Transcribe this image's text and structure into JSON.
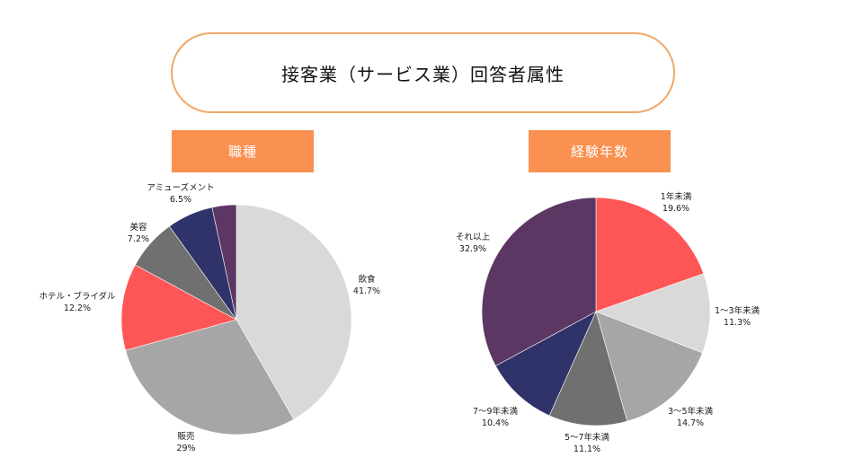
{
  "title": "接客業（サービス業）回答者属性",
  "chart_data": [
    {
      "type": "pie",
      "title": "職種",
      "start": "12 o'clock, clockwise",
      "slices": [
        {
          "label": "飲食",
          "value": 41.7,
          "value_label": "41.7%",
          "color": "#d9d9d9"
        },
        {
          "label": "販売",
          "value": 29,
          "value_label": "29%",
          "color": "#a6a6a6"
        },
        {
          "label": "ホテル・ブライダル",
          "value": 12.2,
          "value_label": "12.2%",
          "color": "#fe5656"
        },
        {
          "label": "美容",
          "value": 7.2,
          "value_label": "7.2%",
          "color": "#707070"
        },
        {
          "label": "アミューズメント",
          "value": 6.5,
          "value_label": "6.5%",
          "color": "#2f3369"
        },
        {
          "label": "",
          "value": 3.4,
          "value_label": "",
          "color": "#5c3764"
        }
      ]
    },
    {
      "type": "pie",
      "title": "経験年数",
      "start": "12 o'clock, clockwise",
      "slices": [
        {
          "label": "1年未満",
          "value": 19.6,
          "value_label": "19.6%",
          "color": "#fe5656"
        },
        {
          "label": "1〜3年未満",
          "value": 11.3,
          "value_label": "11.3%",
          "color": "#d9d9d9"
        },
        {
          "label": "3〜5年未満",
          "value": 14.7,
          "value_label": "14.7%",
          "color": "#a6a6a6"
        },
        {
          "label": "5〜7年未満",
          "value": 11.1,
          "value_label": "11.1%",
          "color": "#707070"
        },
        {
          "label": "7〜9年未満",
          "value": 10.4,
          "value_label": "10.4%",
          "color": "#2f3369"
        },
        {
          "label": "それ以上",
          "value": 32.9,
          "value_label": "32.9%",
          "color": "#5c3764"
        }
      ]
    }
  ]
}
